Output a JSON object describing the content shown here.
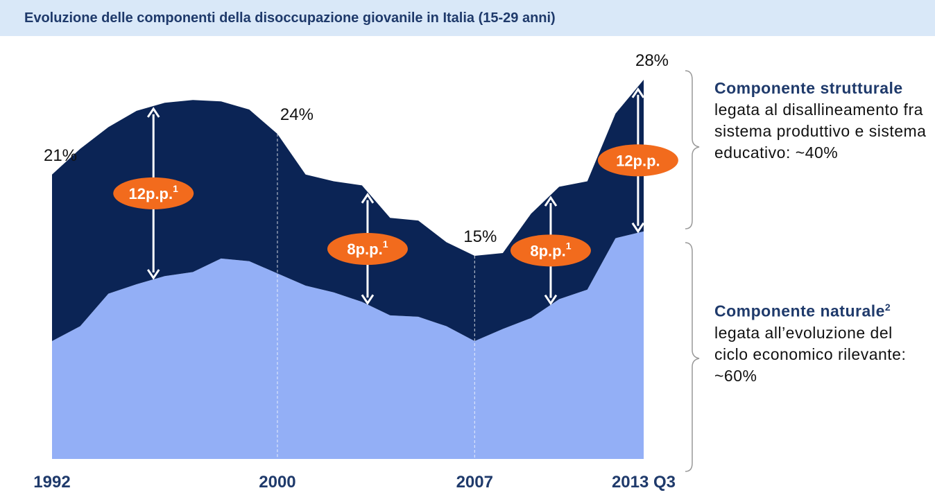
{
  "chart_data": {
    "type": "stacked_area",
    "title": "Evoluzione delle componenti della disoccupazione giovanile in Italia (15-29 anni)",
    "categories": [
      "1992",
      null,
      null,
      null,
      null,
      null,
      null,
      null,
      "2000",
      null,
      null,
      null,
      null,
      null,
      null,
      "2007",
      null,
      null,
      null,
      null,
      null,
      "2013 Q3"
    ],
    "series": [
      {
        "name": "Componente naturale",
        "sup": "2",
        "description": "legata all’evoluzione del ciclo economico rilevante: ~60%",
        "color": "#93aff6",
        "values": [
          8.7,
          9.8,
          12.2,
          12.9,
          13.5,
          13.8,
          14.8,
          14.6,
          13.7,
          12.8,
          12.3,
          11.6,
          10.6,
          10.5,
          9.8,
          8.7,
          9.6,
          10.4,
          11.8,
          12.5,
          16.3,
          16.8
        ]
      },
      {
        "name": "Componente strutturale",
        "description": "legata al disallineamento fra sistema produttivo e sistema educativo: ~40%",
        "color": "#0b2455",
        "values": [
          12.3,
          13.1,
          12.3,
          12.8,
          12.8,
          12.7,
          11.6,
          11.2,
          10.3,
          8.2,
          8.2,
          8.6,
          7.2,
          7.1,
          6.2,
          6.3,
          5.6,
          7.7,
          8.3,
          8.0,
          9.2,
          11.2
        ]
      }
    ],
    "ylim": [
      0,
      28
    ],
    "total_labels": [
      {
        "text": "21%",
        "value": 21
      },
      {
        "text": "24%",
        "value": 24
      },
      {
        "text": "15%",
        "value": 15
      },
      {
        "text": "28%",
        "value": 28
      }
    ],
    "gap_labels": [
      {
        "text": "12p.p.",
        "sup": "1"
      },
      {
        "text": "8p.p.",
        "sup": "1"
      },
      {
        "text": "8p.p.",
        "sup": "1"
      },
      {
        "text": "12p.p."
      }
    ]
  }
}
